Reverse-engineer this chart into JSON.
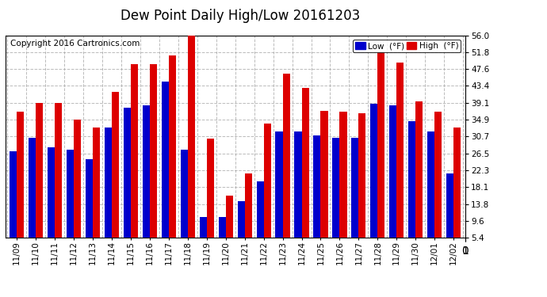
{
  "title": "Dew Point Daily High/Low 20161203",
  "copyright": "Copyright 2016 Cartronics.com",
  "legend_low": "Low  (°F)",
  "legend_high": "High  (°F)",
  "dates": [
    "11/09",
    "11/10",
    "11/11",
    "11/12",
    "11/13",
    "11/14",
    "11/15",
    "11/16",
    "11/17",
    "11/18",
    "11/19",
    "11/20",
    "11/21",
    "11/22",
    "11/23",
    "11/24",
    "11/25",
    "11/26",
    "11/27",
    "11/28",
    "11/29",
    "11/30",
    "12/01",
    "12/02"
  ],
  "high": [
    37.0,
    39.2,
    39.2,
    35.0,
    33.0,
    42.0,
    48.9,
    48.9,
    51.0,
    56.0,
    30.2,
    16.0,
    21.5,
    34.0,
    46.5,
    43.0,
    37.2,
    37.0,
    36.5,
    51.8,
    49.2,
    39.5,
    37.0,
    33.0
  ],
  "low": [
    27.0,
    30.5,
    28.0,
    27.5,
    25.0,
    33.0,
    38.0,
    38.5,
    44.5,
    27.5,
    10.5,
    10.5,
    14.5,
    19.5,
    32.0,
    32.0,
    31.0,
    30.5,
    30.5,
    39.0,
    38.5,
    34.5,
    32.0,
    21.5
  ],
  "ylim_min": 5.4,
  "ylim_max": 56.0,
  "yticks": [
    5.4,
    9.6,
    13.8,
    18.1,
    22.3,
    26.5,
    30.7,
    34.9,
    39.1,
    43.4,
    47.6,
    51.8,
    56.0
  ],
  "bar_width": 0.38,
  "color_low": "#0000cc",
  "color_high": "#dd0000",
  "bg_color": "#ffffff",
  "grid_color": "#aaaaaa",
  "title_fontsize": 12,
  "tick_fontsize": 7.5,
  "copyright_fontsize": 7.5,
  "legend_fontsize": 7.5
}
